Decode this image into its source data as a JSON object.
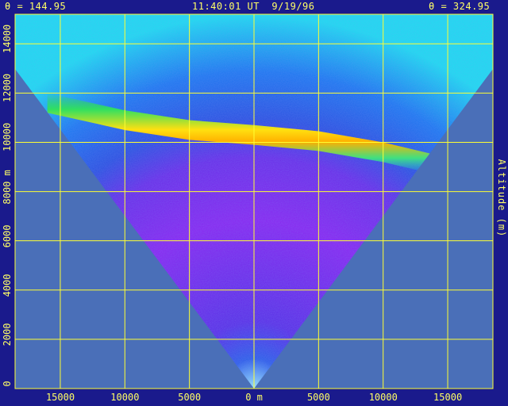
{
  "header": {
    "theta_left": "θ = 144.95",
    "timestamp": "11:40:01 UT  9/19/96",
    "theta_right": "θ = 324.95"
  },
  "chart_data": {
    "type": "heatmap",
    "title": "",
    "ylabel": "Altitude (m)",
    "ylabel_left": "m",
    "xlabel": "m",
    "xlim": [
      -18500,
      18500
    ],
    "ylim": [
      0,
      15200
    ],
    "grid": true,
    "x_ticks": [
      {
        "value": -15000,
        "label": "15000"
      },
      {
        "value": -10000,
        "label": "10000"
      },
      {
        "value": -5000,
        "label": "5000"
      },
      {
        "value": 0,
        "label": "0 m"
      },
      {
        "value": 5000,
        "label": "5000"
      },
      {
        "value": 10000,
        "label": "10000"
      },
      {
        "value": 15000,
        "label": "15000"
      }
    ],
    "y_ticks": [
      {
        "value": 0,
        "label": "0"
      },
      {
        "value": 2000,
        "label": "2000"
      },
      {
        "value": 4000,
        "label": "4000"
      },
      {
        "value": 6000,
        "label": "6000"
      },
      {
        "value": 8000,
        "label": "8000 m"
      },
      {
        "value": 10000,
        "label": "10000"
      },
      {
        "value": 12000,
        "label": "12000"
      },
      {
        "value": 14000,
        "label": "14000"
      }
    ],
    "scan_apex": [
      0,
      0
    ],
    "scan_half_angle_deg": 54.95,
    "layer": {
      "description": "cloud layer",
      "points": [
        [
          -16000,
          11600
        ],
        [
          -10000,
          10900
        ],
        [
          -5000,
          10500
        ],
        [
          0,
          10300
        ],
        [
          5000,
          10050
        ],
        [
          10000,
          9600
        ],
        [
          14000,
          9100
        ]
      ],
      "thickness_m": 800
    },
    "colors": {
      "background_outside": "#4a6fb8",
      "frame": "#1a1a8c",
      "grid": "#ffff33",
      "text": "#ffff66",
      "low_signal": "#7a20e0",
      "mid_signal": "#1f6fe8",
      "high_signal": "#ffe000",
      "edge_signal": "#20e0f0"
    }
  }
}
